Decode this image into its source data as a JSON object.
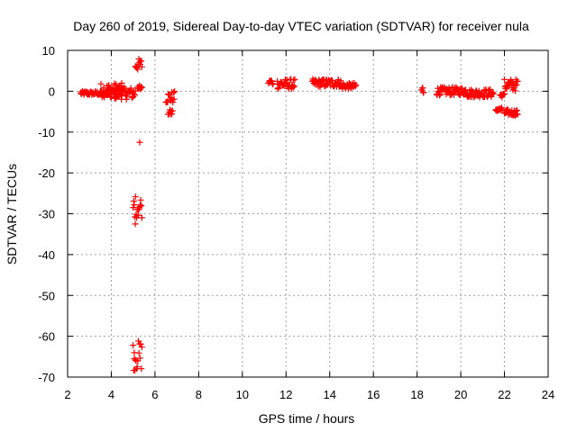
{
  "chart_data": {
    "type": "scatter",
    "title": "Day 260 of 2019, Sidereal Day-to-day VTEC variation (SDTVAR) for receiver nula",
    "xlabel": "GPS time / hours",
    "ylabel": "SDTVAR / TECUs",
    "xlim": [
      2,
      24
    ],
    "ylim": [
      -70,
      10
    ],
    "xticks": [
      2,
      4,
      6,
      8,
      10,
      12,
      14,
      16,
      18,
      20,
      22,
      24
    ],
    "yticks": [
      -70,
      -60,
      -50,
      -40,
      -30,
      -20,
      -10,
      0,
      10
    ],
    "grid": true,
    "marker": "+",
    "marker_color": "#ff0000",
    "series": [
      {
        "name": "SDTVAR",
        "clusters": [
          {
            "x": [
              2.6,
              4.0
            ],
            "y": [
              -1.0,
              0.0
            ]
          },
          {
            "x": [
              3.5,
              4.5
            ],
            "y": [
              -1.5,
              2.0
            ]
          },
          {
            "x": [
              4.0,
              5.1
            ],
            "y": [
              -2.0,
              1.0
            ]
          },
          {
            "x": [
              5.1,
              5.4
            ],
            "y": [
              5.0,
              8.0
            ]
          },
          {
            "x": [
              5.2,
              5.4
            ],
            "y": [
              0.5,
              1.5
            ]
          },
          {
            "x": [
              6.5,
              6.9
            ],
            "y": [
              -3.0,
              0.0
            ]
          },
          {
            "x": [
              6.6,
              6.8
            ],
            "y": [
              -6.0,
              -4.5
            ]
          },
          {
            "x": [
              11.2,
              11.4
            ],
            "y": [
              1.5,
              3.0
            ]
          },
          {
            "x": [
              11.6,
              12.4
            ],
            "y": [
              0.5,
              3.0
            ]
          },
          {
            "x": [
              13.2,
              14.5
            ],
            "y": [
              1.0,
              3.0
            ]
          },
          {
            "x": [
              14.5,
              15.2
            ],
            "y": [
              0.5,
              2.0
            ]
          },
          {
            "x": [
              18.2,
              18.3
            ],
            "y": [
              -1.0,
              1.5
            ]
          },
          {
            "x": [
              18.9,
              20.3
            ],
            "y": [
              -1.0,
              1.0
            ]
          },
          {
            "x": [
              20.3,
              21.5
            ],
            "y": [
              -1.5,
              0.5
            ]
          },
          {
            "x": [
              21.8,
              22.0
            ],
            "y": [
              -1.5,
              -0.5
            ]
          },
          {
            "x": [
              21.6,
              21.9
            ],
            "y": [
              -5.0,
              -4.0
            ]
          },
          {
            "x": [
              22.0,
              22.6
            ],
            "y": [
              -6.0,
              -4.5
            ]
          },
          {
            "x": [
              22.0,
              22.6
            ],
            "y": [
              0.0,
              3.0
            ]
          },
          {
            "x": [
              5.0,
              5.4
            ],
            "y": [
              -31.0,
              -25.5
            ]
          },
          {
            "x": [
              5.0,
              5.4
            ],
            "y": [
              -68.5,
              -61.0
            ]
          }
        ],
        "points": [
          {
            "x": 5.3,
            "y": -12.5
          },
          {
            "x": 5.1,
            "y": -32.5
          },
          {
            "x": 5.05,
            "y": -65.5
          }
        ]
      }
    ]
  }
}
